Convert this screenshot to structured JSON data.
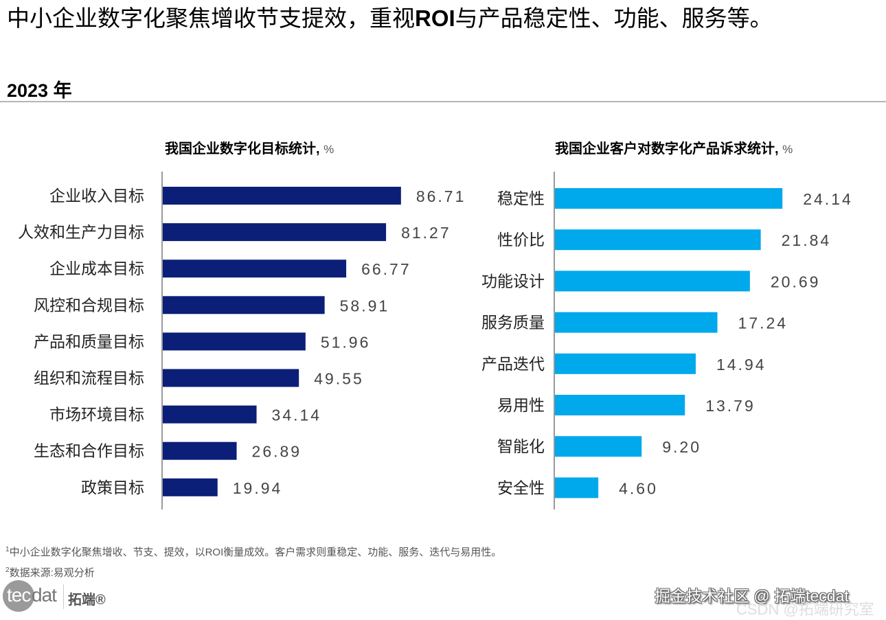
{
  "header": {
    "title_part1": "中小企业数字化聚焦增收节支提效，重视",
    "title_bold": "ROI",
    "title_part2": "与产品稳定性、功能、服务等。",
    "subtitle": "2023 年"
  },
  "colors": {
    "left_bar": "#0b1f78",
    "right_bar": "#00a8ec",
    "axis": "#999999"
  },
  "chart_data": [
    {
      "type": "bar",
      "orientation": "horizontal",
      "title": "我国企业数字化目标统计,",
      "unit": "%",
      "categories": [
        "企业收入目标",
        "人效和生产力目标",
        "企业成本目标",
        "风控和合规目标",
        "产品和质量目标",
        "组织和流程目标",
        "市场环境目标",
        "生态和合作目标",
        "政策目标"
      ],
      "values": [
        86.71,
        81.27,
        66.77,
        58.91,
        51.96,
        49.55,
        34.14,
        26.89,
        19.94
      ],
      "value_labels": [
        "86.71",
        "81.27",
        "66.77",
        "58.91",
        "51.96",
        "49.55",
        "34.14",
        "26.89",
        "19.94"
      ],
      "xlim": [
        0,
        100
      ],
      "grid": false,
      "legend": "none"
    },
    {
      "type": "bar",
      "orientation": "horizontal",
      "title": "我国企业客户对数字化产品诉求统计,",
      "unit": "%",
      "categories": [
        "稳定性",
        "性价比",
        "功能设计",
        "服务质量",
        "产品迭代",
        "易用性",
        "智能化",
        "安全性"
      ],
      "values": [
        24.14,
        21.84,
        20.69,
        17.24,
        14.94,
        13.79,
        9.2,
        4.6
      ],
      "value_labels": [
        "24.14",
        "21.84",
        "20.69",
        "17.24",
        "14.94",
        "13.79",
        "9.20",
        "4.60"
      ],
      "xlim": [
        0,
        30
      ],
      "grid": false,
      "legend": "none"
    }
  ],
  "footnotes": {
    "note1_sup": "1",
    "note1": "中小企业数字化聚焦增收、节支、提效，以ROI衡量成效。客户需求则重稳定、功能、服务、迭代与易用性。",
    "note2_sup": "2",
    "note2": "数据来源:易观分析"
  },
  "logo": {
    "tec": "tec",
    "dat": "dat",
    "cn": "拓端®"
  },
  "watermarks": {
    "line1": "掘金技术社区 @ 拓端tecdat",
    "line2": "CSDN @拓端研究室"
  }
}
